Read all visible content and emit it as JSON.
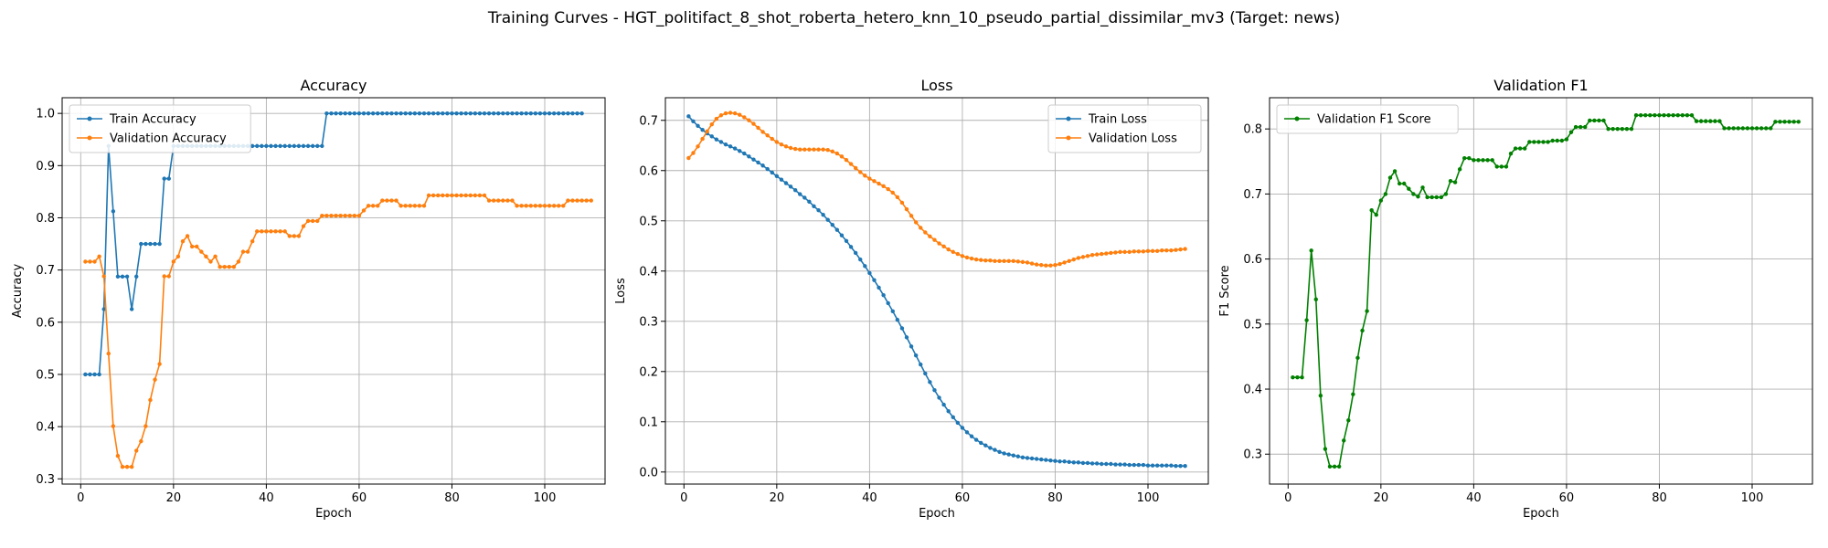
{
  "suptitle": "Training Curves - HGT_politifact_8_shot_roberta_hetero_knn_10_pseudo_partial_dissimilar_mv3 (Target: news)",
  "colors": {
    "train": "#1f77b4",
    "validation": "#ff7f0e",
    "f1": "#008000",
    "grid": "#b0b0b0"
  },
  "chart_data": [
    {
      "type": "line",
      "title": "Accuracy",
      "xlabel": "Epoch",
      "ylabel": "Accuracy",
      "xlim": [
        -4,
        113
      ],
      "ylim": [
        0.29,
        1.03
      ],
      "xticks": [
        0,
        20,
        40,
        60,
        80,
        100
      ],
      "yticks": [
        0.3,
        0.4,
        0.5,
        0.6,
        0.7,
        0.8,
        0.9,
        1.0
      ],
      "ytick_labels": [
        "0.3",
        "0.4",
        "0.5",
        "0.6",
        "0.7",
        "0.8",
        "0.9",
        "1.0"
      ],
      "grid": true,
      "legend": "upper-left",
      "series": [
        {
          "name": "Train Accuracy",
          "color": "#1f77b4",
          "values": [
            0.5,
            0.5,
            0.5,
            0.5,
            0.625,
            0.9375,
            0.8125,
            0.6875,
            0.6875,
            0.6875,
            0.625,
            0.6875,
            0.75,
            0.75,
            0.75,
            0.75,
            0.75,
            0.875,
            0.875,
            0.9375,
            0.9375,
            0.9375,
            0.9375,
            0.9375,
            0.9375,
            0.9375,
            0.9375,
            0.9375,
            0.9375,
            0.9375,
            0.9375,
            0.9375,
            0.9375,
            0.9375,
            0.9375,
            0.9375,
            0.9375,
            0.9375,
            0.9375,
            0.9375,
            0.9375,
            0.9375,
            0.9375,
            0.9375,
            0.9375,
            0.9375,
            0.9375,
            0.9375,
            0.9375,
            0.9375,
            0.9375,
            0.9375,
            1,
            1,
            1,
            1,
            1,
            1,
            1,
            1,
            1,
            1,
            1,
            1,
            1,
            1,
            1,
            1,
            1,
            1,
            1,
            1,
            1,
            1,
            1,
            1,
            1,
            1,
            1,
            1,
            1,
            1,
            1,
            1,
            1,
            1,
            1,
            1,
            1,
            1,
            1,
            1,
            1,
            1,
            1,
            1,
            1,
            1,
            1,
            1,
            1,
            1,
            1,
            1,
            1,
            1,
            1,
            1
          ]
        },
        {
          "name": "Validation Accuracy",
          "color": "#ff7f0e",
          "values": [
            0.716,
            0.716,
            0.716,
            0.726,
            0.688,
            0.54,
            0.401,
            0.344,
            0.323,
            0.323,
            0.323,
            0.354,
            0.372,
            0.401,
            0.451,
            0.49,
            0.52,
            0.688,
            0.688,
            0.716,
            0.726,
            0.755,
            0.765,
            0.745,
            0.745,
            0.735,
            0.726,
            0.716,
            0.726,
            0.706,
            0.706,
            0.706,
            0.706,
            0.716,
            0.735,
            0.735,
            0.755,
            0.774,
            0.774,
            0.774,
            0.774,
            0.774,
            0.774,
            0.774,
            0.765,
            0.765,
            0.765,
            0.784,
            0.794,
            0.794,
            0.794,
            0.804,
            0.804,
            0.804,
            0.804,
            0.804,
            0.804,
            0.804,
            0.804,
            0.804,
            0.814,
            0.823,
            0.823,
            0.823,
            0.833,
            0.833,
            0.833,
            0.833,
            0.823,
            0.823,
            0.823,
            0.823,
            0.823,
            0.823,
            0.843,
            0.843,
            0.843,
            0.843,
            0.843,
            0.843,
            0.843,
            0.843,
            0.843,
            0.843,
            0.843,
            0.843,
            0.843,
            0.833,
            0.833,
            0.833,
            0.833,
            0.833,
            0.833,
            0.823,
            0.823,
            0.823,
            0.823,
            0.823,
            0.823,
            0.823,
            0.823,
            0.823,
            0.823,
            0.823,
            0.833,
            0.833,
            0.833,
            0.833,
            0.833,
            0.833
          ]
        }
      ]
    },
    {
      "type": "line",
      "title": "Loss",
      "xlabel": "Epoch",
      "ylabel": "Loss",
      "xlim": [
        -4,
        113
      ],
      "ylim": [
        -0.024,
        0.745
      ],
      "xticks": [
        0,
        20,
        40,
        60,
        80,
        100
      ],
      "yticks": [
        0.0,
        0.1,
        0.2,
        0.3,
        0.4,
        0.5,
        0.6,
        0.7
      ],
      "ytick_labels": [
        "0.0",
        "0.1",
        "0.2",
        "0.3",
        "0.4",
        "0.5",
        "0.6",
        "0.7"
      ],
      "grid": true,
      "legend": "upper-right",
      "series": [
        {
          "name": "Train Loss",
          "color": "#1f77b4",
          "values": [
            0.708,
            0.698,
            0.689,
            0.681,
            0.674,
            0.668,
            0.662,
            0.657,
            0.652,
            0.648,
            0.644,
            0.639,
            0.634,
            0.628,
            0.622,
            0.616,
            0.61,
            0.603,
            0.596,
            0.589,
            0.582,
            0.575,
            0.568,
            0.561,
            0.553,
            0.546,
            0.538,
            0.529,
            0.521,
            0.512,
            0.502,
            0.492,
            0.482,
            0.471,
            0.46,
            0.448,
            0.436,
            0.423,
            0.41,
            0.396,
            0.382,
            0.367,
            0.352,
            0.336,
            0.32,
            0.303,
            0.286,
            0.268,
            0.25,
            0.232,
            0.214,
            0.196,
            0.179,
            0.163,
            0.148,
            0.134,
            0.121,
            0.109,
            0.098,
            0.088,
            0.079,
            0.071,
            0.064,
            0.058,
            0.053,
            0.048,
            0.044,
            0.04,
            0.037,
            0.035,
            0.033,
            0.031,
            0.029,
            0.028,
            0.027,
            0.026,
            0.025,
            0.024,
            0.023,
            0.022,
            0.021,
            0.021,
            0.02,
            0.019,
            0.019,
            0.018,
            0.018,
            0.017,
            0.017,
            0.016,
            0.016,
            0.016,
            0.015,
            0.015,
            0.015,
            0.014,
            0.014,
            0.014,
            0.014,
            0.013,
            0.013,
            0.013,
            0.013,
            0.013,
            0.013,
            0.012,
            0.012,
            0.012
          ]
        },
        {
          "name": "Validation Loss",
          "color": "#ff7f0e",
          "values": [
            0.625,
            0.635,
            0.648,
            0.663,
            0.678,
            0.692,
            0.703,
            0.71,
            0.714,
            0.715,
            0.714,
            0.711,
            0.706,
            0.7,
            0.693,
            0.685,
            0.677,
            0.67,
            0.663,
            0.657,
            0.652,
            0.648,
            0.645,
            0.643,
            0.642,
            0.642,
            0.642,
            0.642,
            0.642,
            0.642,
            0.641,
            0.638,
            0.634,
            0.628,
            0.621,
            0.613,
            0.605,
            0.597,
            0.59,
            0.584,
            0.579,
            0.574,
            0.569,
            0.563,
            0.556,
            0.547,
            0.536,
            0.523,
            0.51,
            0.497,
            0.486,
            0.477,
            0.469,
            0.462,
            0.455,
            0.449,
            0.443,
            0.438,
            0.434,
            0.43,
            0.427,
            0.425,
            0.423,
            0.422,
            0.421,
            0.421,
            0.42,
            0.42,
            0.42,
            0.42,
            0.42,
            0.419,
            0.418,
            0.417,
            0.415,
            0.413,
            0.412,
            0.411,
            0.411,
            0.412,
            0.414,
            0.417,
            0.42,
            0.423,
            0.426,
            0.428,
            0.43,
            0.432,
            0.433,
            0.434,
            0.435,
            0.436,
            0.437,
            0.438,
            0.438,
            0.438,
            0.439,
            0.439,
            0.439,
            0.44,
            0.44,
            0.44,
            0.441,
            0.441,
            0.441,
            0.442,
            0.443,
            0.444
          ]
        }
      ]
    },
    {
      "type": "line",
      "title": "Validation F1",
      "xlabel": "Epoch",
      "ylabel": "F1 Score",
      "xlim": [
        -4,
        113
      ],
      "ylim": [
        0.254,
        0.848
      ],
      "xticks": [
        0,
        20,
        40,
        60,
        80,
        100
      ],
      "yticks": [
        0.3,
        0.4,
        0.5,
        0.6,
        0.7,
        0.8
      ],
      "ytick_labels": [
        "0.3",
        "0.4",
        "0.5",
        "0.6",
        "0.7",
        "0.8"
      ],
      "grid": true,
      "legend": "upper-left",
      "series": [
        {
          "name": "Validation F1 Score",
          "color": "#008000",
          "values": [
            0.418,
            0.418,
            0.418,
            0.506,
            0.613,
            0.538,
            0.39,
            0.308,
            0.281,
            0.281,
            0.281,
            0.321,
            0.352,
            0.392,
            0.448,
            0.49,
            0.52,
            0.675,
            0.668,
            0.69,
            0.7,
            0.725,
            0.735,
            0.716,
            0.716,
            0.708,
            0.7,
            0.696,
            0.71,
            0.695,
            0.695,
            0.695,
            0.695,
            0.7,
            0.72,
            0.718,
            0.738,
            0.755,
            0.755,
            0.752,
            0.752,
            0.752,
            0.752,
            0.752,
            0.742,
            0.742,
            0.742,
            0.762,
            0.77,
            0.77,
            0.77,
            0.78,
            0.78,
            0.78,
            0.78,
            0.78,
            0.782,
            0.782,
            0.782,
            0.784,
            0.795,
            0.803,
            0.803,
            0.803,
            0.813,
            0.813,
            0.813,
            0.813,
            0.8,
            0.8,
            0.8,
            0.8,
            0.8,
            0.8,
            0.821,
            0.821,
            0.821,
            0.821,
            0.821,
            0.821,
            0.821,
            0.821,
            0.821,
            0.821,
            0.821,
            0.821,
            0.821,
            0.812,
            0.812,
            0.812,
            0.812,
            0.812,
            0.812,
            0.801,
            0.801,
            0.801,
            0.801,
            0.801,
            0.801,
            0.801,
            0.801,
            0.801,
            0.801,
            0.801,
            0.811,
            0.811,
            0.811,
            0.811,
            0.811,
            0.811
          ]
        }
      ]
    }
  ]
}
